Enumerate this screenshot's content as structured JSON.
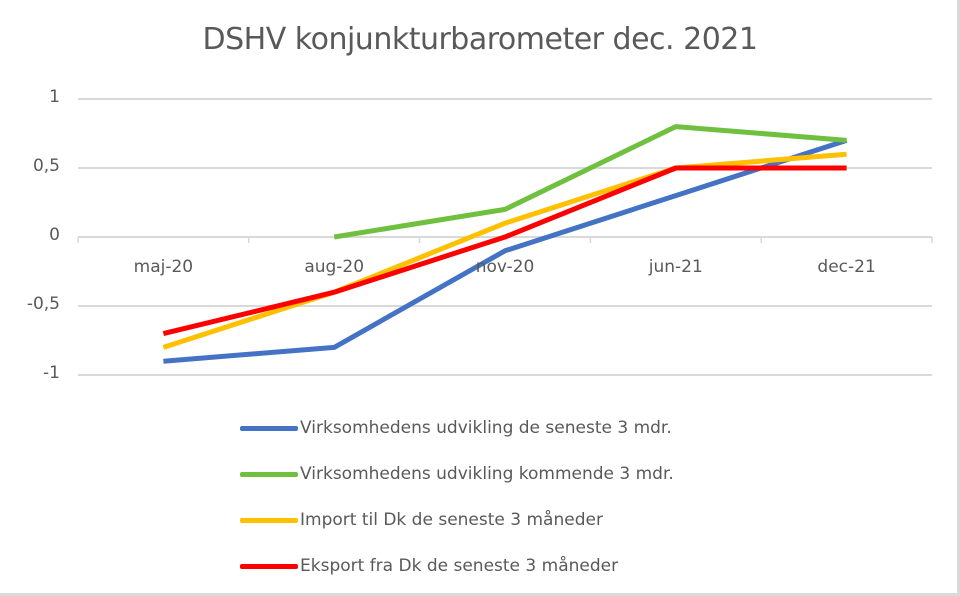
{
  "chart_data": {
    "type": "line",
    "title": "DSHV konjunkturbarometer dec. 2021",
    "xlabel": "",
    "ylabel": "",
    "categories": [
      "maj-20",
      "aug-20",
      "nov-20",
      "jun-21",
      "dec-21"
    ],
    "ylim": [
      -1,
      1
    ],
    "yticks": [
      "1",
      "0,5",
      "0",
      "-0,5",
      "-1"
    ],
    "ytick_values": [
      1,
      0.5,
      0,
      -0.5,
      -1
    ],
    "grid": true,
    "legend_position": "bottom",
    "series": [
      {
        "name": "Virksomhedens udvikling de seneste 3 mdr.",
        "color": "#4472c4",
        "values": [
          -0.9,
          -0.8,
          -0.1,
          0.3,
          0.7
        ]
      },
      {
        "name": "Virksomhedens udvikling kommende 3 mdr.",
        "color": "#70c040",
        "values": [
          null,
          0,
          0.2,
          0.8,
          0.7
        ]
      },
      {
        "name": "Import til Dk de seneste 3 måneder",
        "color": "#ffc000",
        "values": [
          -0.8,
          -0.4,
          0.1,
          0.5,
          0.6
        ]
      },
      {
        "name": "Eksport fra Dk de seneste 3 måneder",
        "color": "#ff0000",
        "values": [
          -0.7,
          -0.4,
          0,
          0.5,
          0.5
        ]
      }
    ]
  }
}
